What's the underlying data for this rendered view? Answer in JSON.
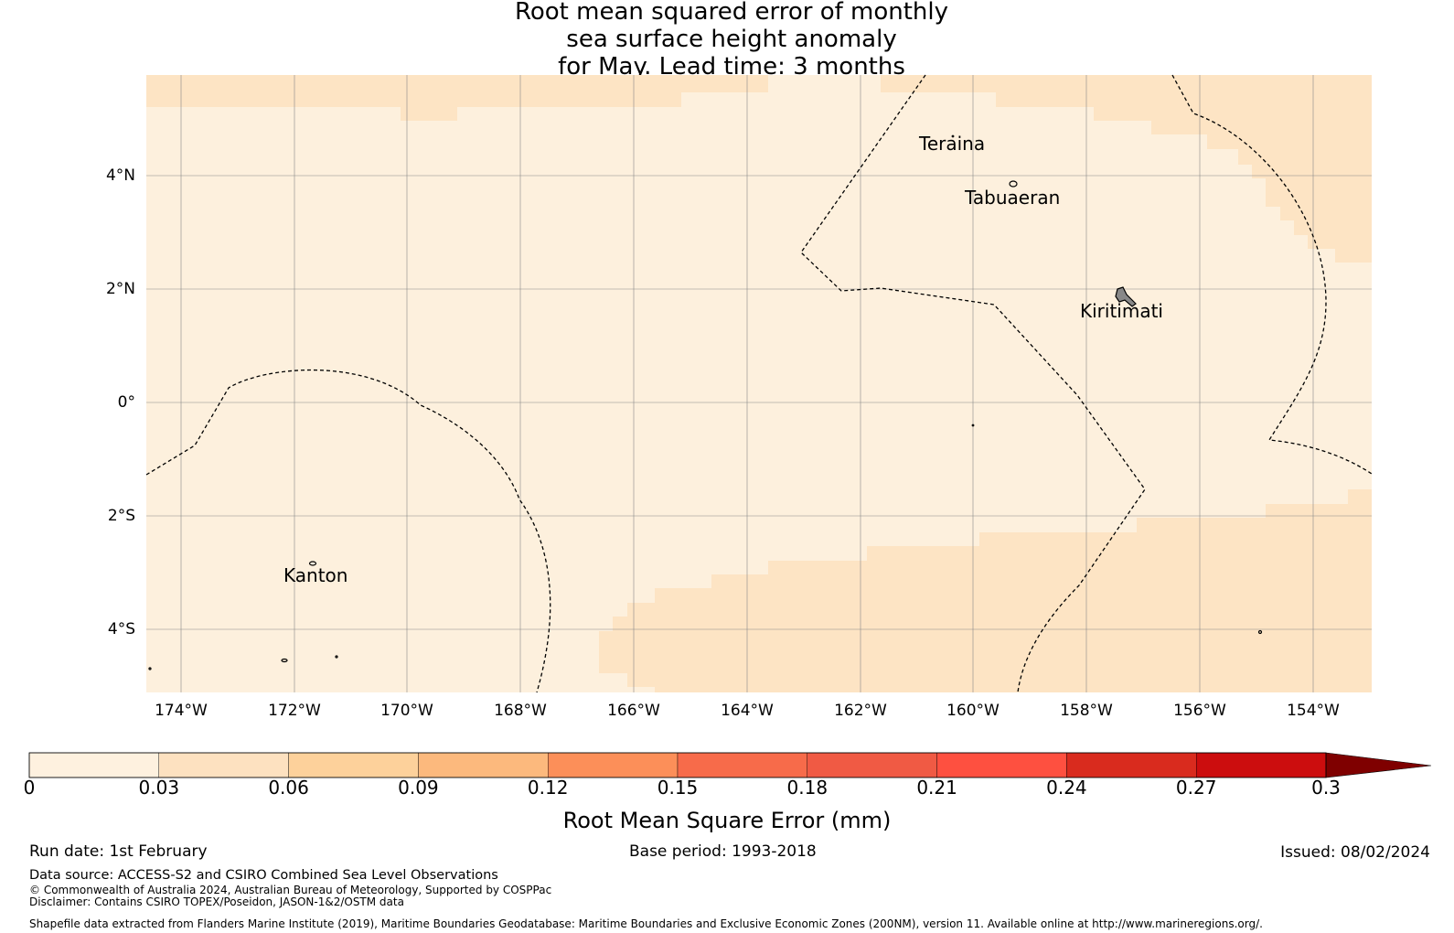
{
  "title": {
    "line1": "Root mean squared error of monthly",
    "line2": "sea surface height anomaly",
    "line3": "for May. Lead time: 3 months"
  },
  "map": {
    "lat_ticks": [
      "4°N",
      "2°N",
      "0°",
      "2°S",
      "4°S"
    ],
    "lon_ticks": [
      "174°W",
      "172°W",
      "170°W",
      "168°W",
      "166°W",
      "164°W",
      "162°W",
      "160°W",
      "158°W",
      "156°W",
      "154°W"
    ],
    "places": {
      "teraina": "Teraina",
      "tabuaeran": "Tabuaeran",
      "kiritimati": "Kiritimati",
      "kanton": "Kanton"
    },
    "field_classes": [
      "0-0.03",
      "0.03-0.06"
    ],
    "colors": {
      "class0": "#fdf0dd",
      "class1": "#fde4c4"
    }
  },
  "colorbar": {
    "ticks": [
      "0",
      "0.03",
      "0.06",
      "0.09",
      "0.12",
      "0.15",
      "0.18",
      "0.21",
      "0.24",
      "0.27",
      "0.3"
    ],
    "colors": [
      "#fef1df",
      "#fde1c0",
      "#fdd19b",
      "#fcb97d",
      "#fc8f59",
      "#f76b4a",
      "#f05a44",
      "#fe5040",
      "#d92b1e",
      "#cc0d0e",
      "#b20004"
    ],
    "extend_color": "#7f0000",
    "label": "Root Mean Square Error (mm)"
  },
  "footer": {
    "run_date": "Run date: 1st February",
    "base_period": "Base period: 1993-2018",
    "issued": "Issued: 08/02/2024",
    "data_source": "Data source: ACCESS-S2 and CSIRO Combined Sea Level Observations",
    "copyright": "© Commonwealth of Australia 2024, Australian Bureau of Meteorology, Supported by COSPPac",
    "disclaimer": "Disclaimer: Contains CSIRO TOPEX/Poseidon, JASON-1&2/OSTM data",
    "shapefile": "Shapefile data extracted from Flanders Marine Institute (2019), Maritime Boundaries Geodatabase: Maritime Boundaries and Exclusive Economic Zones (200NM), version 11. Available online at http://www.marineregions.org/."
  }
}
